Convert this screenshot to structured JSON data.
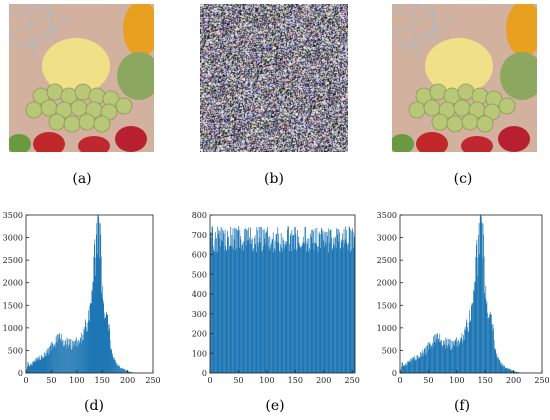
{
  "captions": {
    "a": "(a)",
    "b": "(b)",
    "c": "(c)",
    "d": "(d)",
    "e": "(e)",
    "f": "(f)"
  },
  "colors": {
    "bar": "#1f77b4",
    "axis": "#222222"
  },
  "chart_data": [
    {
      "id": "d",
      "type": "bar",
      "title": "",
      "xlabel": "",
      "ylabel": "",
      "xlim": [
        0,
        250
      ],
      "ylim": [
        0,
        3500
      ],
      "xticks": [
        0,
        50,
        100,
        150,
        200,
        250
      ],
      "yticks": [
        0,
        500,
        1000,
        1500,
        2000,
        2500,
        3000,
        3500
      ],
      "profile": [
        [
          0,
          0
        ],
        [
          3,
          200
        ],
        [
          8,
          180
        ],
        [
          15,
          230
        ],
        [
          25,
          330
        ],
        [
          35,
          380
        ],
        [
          45,
          480
        ],
        [
          55,
          650
        ],
        [
          65,
          760
        ],
        [
          75,
          720
        ],
        [
          85,
          640
        ],
        [
          95,
          620
        ],
        [
          105,
          700
        ],
        [
          115,
          880
        ],
        [
          122,
          1100
        ],
        [
          128,
          1450
        ],
        [
          132,
          1900
        ],
        [
          136,
          2250
        ],
        [
          140,
          2750
        ],
        [
          143,
          3200
        ],
        [
          145,
          3400
        ],
        [
          148,
          3000
        ],
        [
          151,
          2400
        ],
        [
          154,
          1700
        ],
        [
          158,
          1350
        ],
        [
          162,
          1500
        ],
        [
          166,
          1000
        ],
        [
          172,
          500
        ],
        [
          180,
          220
        ],
        [
          190,
          120
        ],
        [
          200,
          60
        ],
        [
          210,
          20
        ],
        [
          220,
          5
        ],
        [
          255,
          0
        ]
      ],
      "grid": false
    },
    {
      "id": "e",
      "type": "bar",
      "title": "",
      "xlabel": "",
      "ylabel": "",
      "xlim": [
        0,
        255
      ],
      "ylim": [
        0,
        800
      ],
      "xticks": [
        0,
        50,
        100,
        150,
        200,
        250
      ],
      "yticks": [
        0,
        100,
        200,
        300,
        400,
        500,
        600,
        700,
        800
      ],
      "mean": 655,
      "spread": [
        610,
        745
      ],
      "grid": false
    },
    {
      "id": "f",
      "type": "bar",
      "title": "",
      "xlabel": "",
      "ylabel": "",
      "xlim": [
        0,
        250
      ],
      "ylim": [
        0,
        3500
      ],
      "xticks": [
        0,
        50,
        100,
        150,
        200,
        250
      ],
      "yticks": [
        0,
        500,
        1000,
        1500,
        2000,
        2500,
        3000,
        3500
      ],
      "profile": [
        [
          0,
          0
        ],
        [
          3,
          200
        ],
        [
          8,
          180
        ],
        [
          15,
          230
        ],
        [
          25,
          330
        ],
        [
          35,
          380
        ],
        [
          45,
          480
        ],
        [
          55,
          650
        ],
        [
          65,
          760
        ],
        [
          75,
          720
        ],
        [
          85,
          640
        ],
        [
          95,
          620
        ],
        [
          105,
          700
        ],
        [
          115,
          880
        ],
        [
          122,
          1100
        ],
        [
          128,
          1450
        ],
        [
          132,
          1900
        ],
        [
          136,
          2250
        ],
        [
          140,
          2750
        ],
        [
          143,
          3200
        ],
        [
          145,
          3400
        ],
        [
          148,
          3000
        ],
        [
          151,
          2400
        ],
        [
          154,
          1700
        ],
        [
          158,
          1350
        ],
        [
          162,
          1500
        ],
        [
          166,
          1000
        ],
        [
          172,
          500
        ],
        [
          180,
          220
        ],
        [
          190,
          120
        ],
        [
          200,
          60
        ],
        [
          210,
          20
        ],
        [
          220,
          5
        ],
        [
          255,
          0
        ]
      ],
      "grid": false
    }
  ]
}
